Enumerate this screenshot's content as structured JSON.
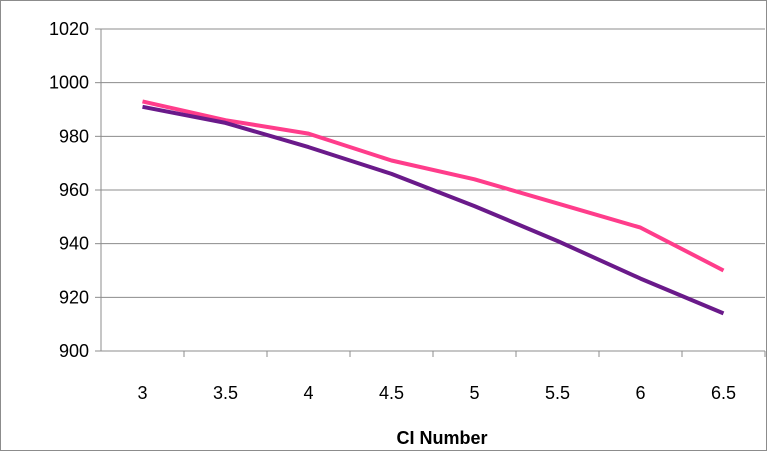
{
  "chart_data": {
    "type": "line",
    "title": "",
    "xlabel": "CI Number",
    "ylabel": "",
    "x": [
      3,
      3.5,
      4,
      4.5,
      5,
      5.5,
      6,
      6.5
    ],
    "x_tick_labels": [
      "3",
      "3.5",
      "4",
      "4.5",
      "5",
      "5.5",
      "6",
      "6.5"
    ],
    "y_ticks": [
      900,
      920,
      940,
      960,
      980,
      1000,
      1020
    ],
    "ylim": [
      900,
      1020
    ],
    "grid": "horizontal",
    "legend": "none",
    "series": [
      {
        "color": "#ff3d8b",
        "values": [
          993,
          986,
          981,
          971,
          964,
          955,
          946,
          930
        ]
      },
      {
        "color": "#6a1a8a",
        "values": [
          991,
          985,
          976,
          966,
          954,
          941,
          927,
          914
        ]
      }
    ]
  }
}
